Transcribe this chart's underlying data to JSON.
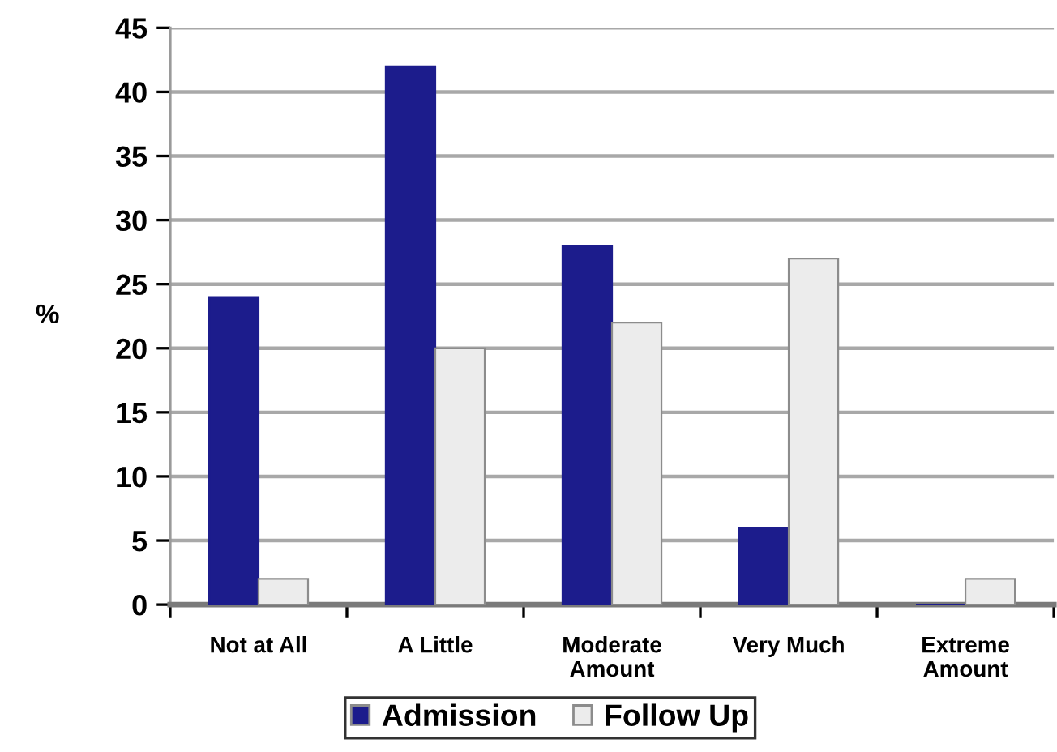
{
  "chart_data": {
    "type": "bar",
    "ylabel": "%",
    "categories": [
      "Not at All",
      "A Little",
      "Moderate\nAmount",
      "Very Much",
      "Extreme\nAmount"
    ],
    "series": [
      {
        "name": "Admission",
        "color": "#1c1c8c",
        "values": [
          24,
          42,
          28,
          6,
          0
        ]
      },
      {
        "name": "Follow Up",
        "color": "#ececec",
        "values": [
          2,
          20,
          22,
          27,
          2
        ]
      }
    ],
    "ylim": [
      0,
      45
    ],
    "yticks": [
      0,
      5,
      10,
      15,
      20,
      25,
      30,
      35,
      40,
      45
    ],
    "grid": "y",
    "legend": "bottom"
  }
}
